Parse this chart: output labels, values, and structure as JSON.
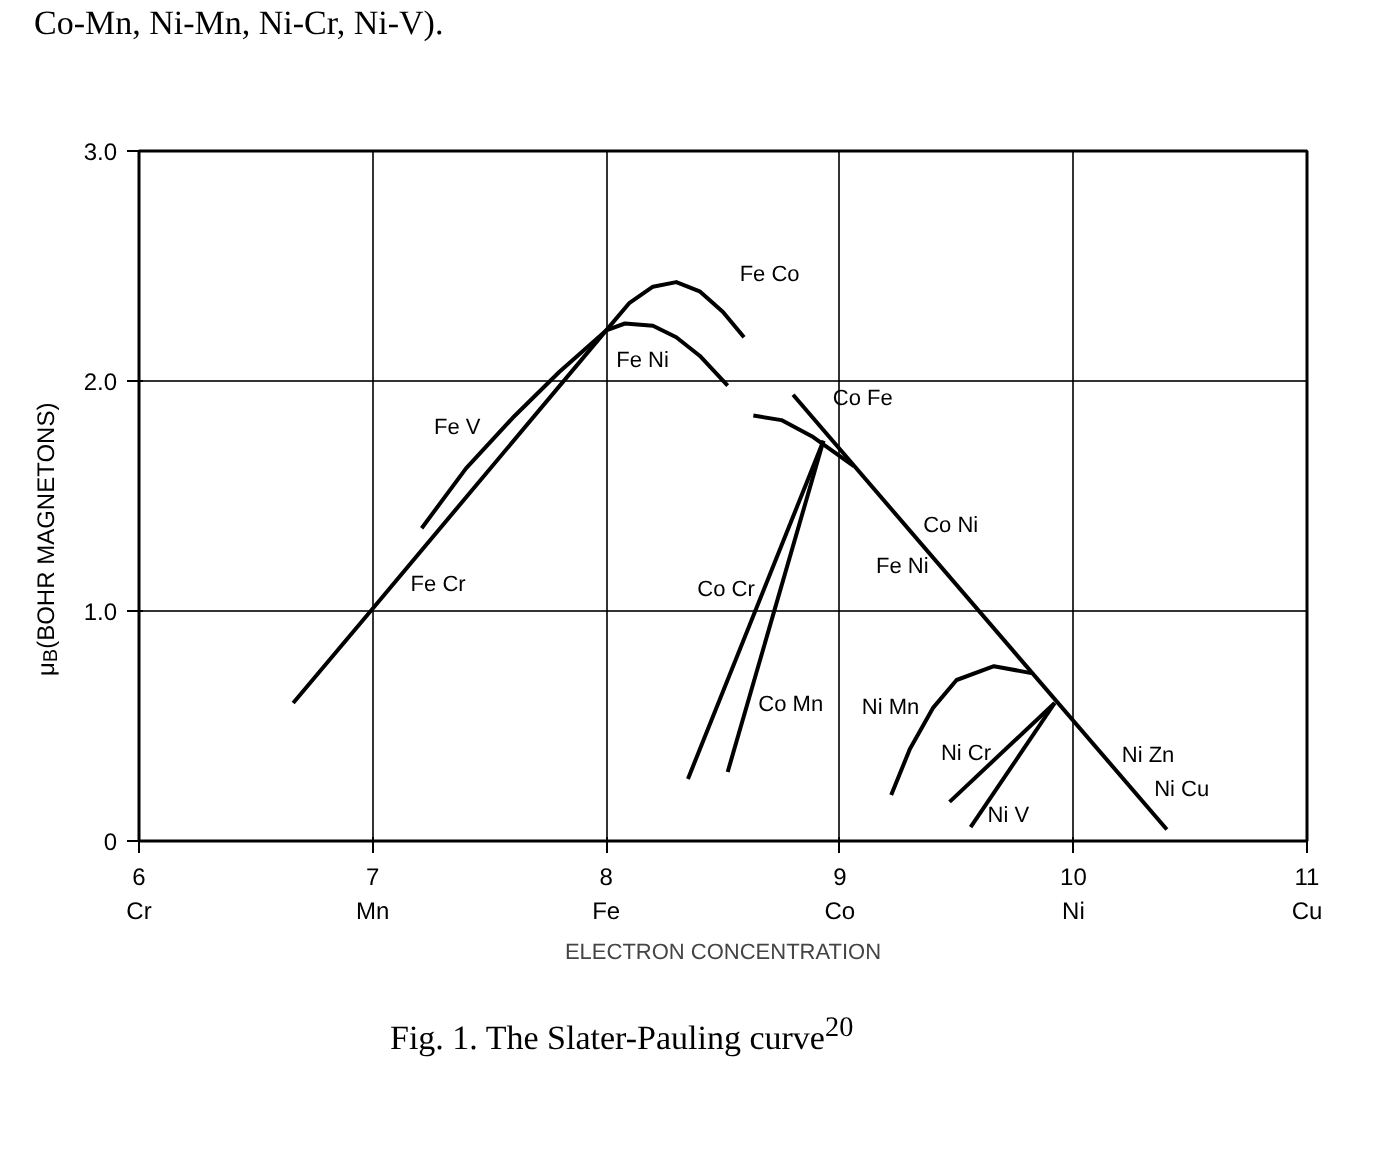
{
  "chart_data": {
    "type": "line",
    "xlabel": "ELECTRON CONCENTRATION",
    "ylabel": "μ$_{B}$(BOHR MAGNETONS)",
    "xlim": [
      6,
      11
    ],
    "ylim": [
      0,
      3
    ],
    "xticks": [
      {
        "value": 6,
        "label": "6\nCr"
      },
      {
        "value": 7,
        "label": "7\nMn"
      },
      {
        "value": 8,
        "label": "8\nFe"
      },
      {
        "value": 9,
        "label": "9\nCo"
      },
      {
        "value": 10,
        "label": "10\nNi"
      },
      {
        "value": 11,
        "label": "11\nCu"
      }
    ],
    "yticks": [
      0,
      {
        "value": 1,
        "label": "1.0"
      },
      {
        "value": 2,
        "label": "2.0"
      },
      {
        "value": 3,
        "label": "3.0"
      }
    ],
    "grid": true,
    "marker": "none",
    "line_style": "solid",
    "series": [
      {
        "color": "#000000",
        "x": [
          6.66,
          7.0,
          8.0,
          8.1,
          8.2,
          8.3,
          8.4,
          8.5,
          8.59
        ],
        "values": [
          0.6,
          1.01,
          2.22,
          2.34,
          2.41,
          2.43,
          2.39,
          2.3,
          2.19
        ]
      },
      {
        "color": "#000000",
        "x": [
          7.21,
          7.4,
          7.6,
          7.8,
          8.0,
          8.08,
          8.2,
          8.3,
          8.4,
          8.52
        ],
        "values": [
          1.36,
          1.62,
          1.84,
          2.04,
          2.22,
          2.25,
          2.24,
          2.19,
          2.11,
          1.98
        ]
      },
      {
        "color": "#000000",
        "x": [
          8.8,
          10.4
        ],
        "values": [
          1.94,
          0.05
        ]
      },
      {
        "color": "#000000",
        "x": [
          8.63,
          8.75,
          8.88,
          9.06
        ],
        "values": [
          1.85,
          1.83,
          1.76,
          1.63
        ]
      },
      {
        "color": "#000000",
        "x": [
          8.35,
          8.93
        ],
        "values": [
          0.27,
          1.74
        ]
      },
      {
        "color": "#000000",
        "x": [
          8.52,
          8.93
        ],
        "values": [
          0.3,
          1.74
        ]
      },
      {
        "color": "#000000",
        "x": [
          9.22,
          9.3,
          9.4,
          9.5,
          9.66,
          9.82
        ],
        "values": [
          0.2,
          0.4,
          0.58,
          0.7,
          0.76,
          0.73
        ]
      },
      {
        "color": "#000000",
        "x": [
          9.47,
          9.92
        ],
        "values": [
          0.17,
          0.6
        ]
      },
      {
        "color": "#000000",
        "x": [
          9.56,
          9.92
        ],
        "values": [
          0.06,
          0.6
        ]
      }
    ],
    "annotations": [
      "Co-Mn, Ni-Mn, Ni-Cr, Ni-V).",
      {
        "text": "Fe Co",
        "x": 8.4,
        "y": 2.39
      },
      {
        "text": "Fe Ni",
        "x": 8.3,
        "y": 2.19
      },
      {
        "text": "Fe V",
        "x": 7.4,
        "y": 1.62
      },
      {
        "text": "Fe Cr",
        "x": 7.0,
        "y": 1.01
      },
      {
        "text": "Co Cr",
        "x": 8.67,
        "y": 1.09
      },
      {
        "text": "Co Mn",
        "x": 8.6,
        "y": 0.59
      },
      {
        "text": "Co Fe",
        "x": 8.85,
        "y": 1.88
      },
      {
        "text": "Co Ni",
        "x": 9.28,
        "y": 1.37
      },
      {
        "text": "Fe Ni",
        "x": 9.44,
        "y": 1.19
      },
      {
        "text": "Ni Mn",
        "x": 9.4,
        "y": 0.58
      },
      {
        "text": "Ni Cr",
        "x": 9.69,
        "y": 0.38
      },
      {
        "text": "Ni V",
        "x": 9.59,
        "y": 0.11
      },
      {
        "text": "Ni Zn",
        "x": 10.13,
        "y": 0.37
      },
      {
        "text": "Ni Cu",
        "x": 10.26,
        "y": 0.22
      },
      "Fig. 1.  The Slater-Pauling curve$^{20}$"
    ]
  }
}
